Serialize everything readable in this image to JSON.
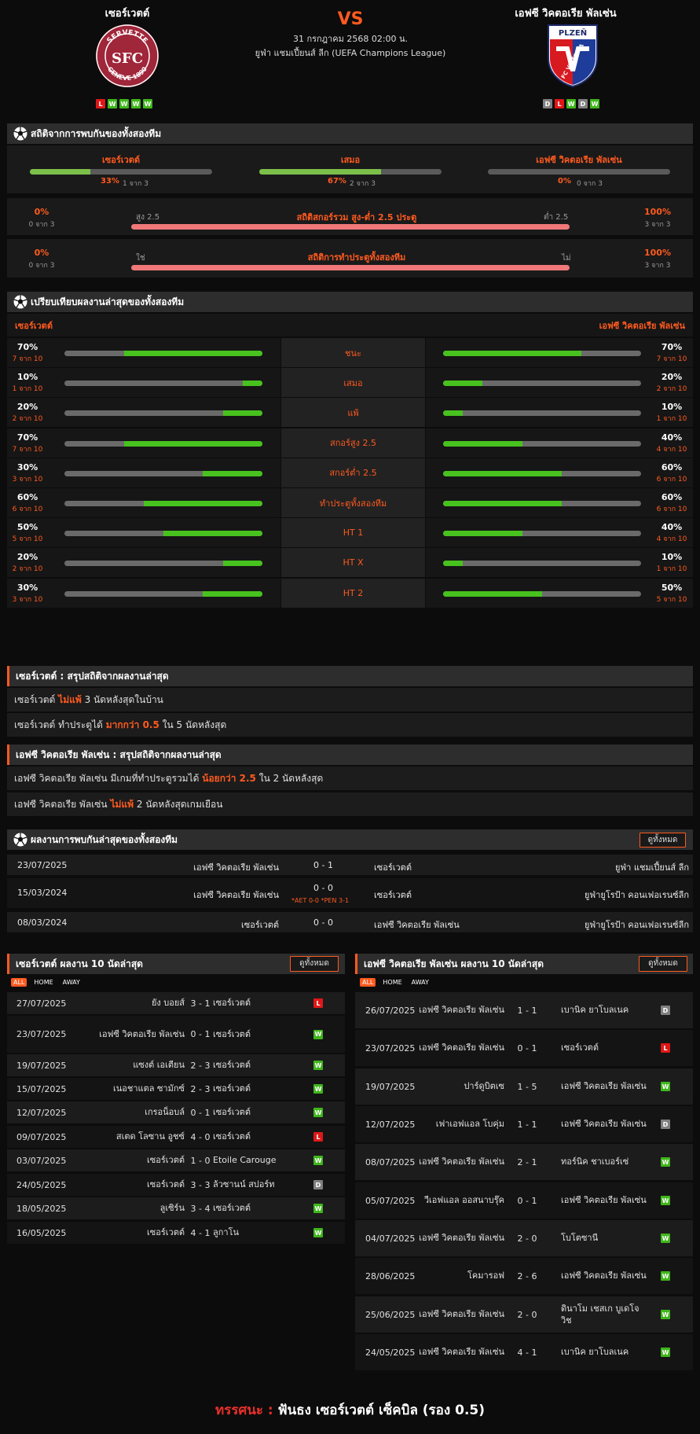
{
  "header": {
    "home": "เซอร์เวตต์",
    "away": "เอฟซี วิคตอเรีย พัลเซ่น",
    "vs": "VS",
    "date": "31 กรกฎาคม 2568 02:00 น.",
    "league": "ยูฟ่า แชมเปี้ยนส์ ลีก (UEFA Champions League)",
    "home_form": [
      "L",
      "W",
      "W",
      "W",
      "W"
    ],
    "away_form": [
      "D",
      "L",
      "W",
      "D",
      "W"
    ],
    "home_logo_text": {
      "top": "SERVETTE",
      "bottom": "GENEVE 1890",
      "mark": "SFC"
    },
    "away_logo_text": {
      "top": "PLZEŇ",
      "mid": "FC VIKTORIA"
    }
  },
  "h2h_stats": {
    "title": "สถิติจากการพบกันของทั้งสองทีม",
    "home": {
      "label": "เซอร์เวตต์",
      "pct": "33%",
      "sub": "1 จาก 3",
      "fill": 0.33
    },
    "draw": {
      "label": "เสมอ",
      "pct": "67%",
      "sub": "2 จาก 3",
      "fill": 0.67
    },
    "away": {
      "label": "เอฟซี วิคตอเรีย พัลเซ่น",
      "pct": "0%",
      "sub": "0 จาก 3",
      "fill": 0
    },
    "ou": {
      "lpct": "0%",
      "lsub": "0 จาก 3",
      "left": "สูง 2.5",
      "title": "สถิติสกอร์รวม สูง-ต่ำ 2.5 ประตู",
      "right": "ต่ำ 2.5",
      "rpct": "100%",
      "rsub": "3 จาก 3"
    },
    "btts": {
      "lpct": "0%",
      "lsub": "0 จาก 3",
      "left": "ใช่",
      "title": "สถิติการทำประตูทั้งสองทีม",
      "right": "ไม่",
      "rpct": "100%",
      "rsub": "3 จาก 3"
    }
  },
  "compare": {
    "title": "เปรียบเทียบผลงานล่าสุดของทั้งสองทีม",
    "home": "เซอร์เวตต์",
    "away": "เอฟซี วิคตอเรีย พัลเซ่น",
    "rows": [
      {
        "label": "ชนะ",
        "hp": "70%",
        "hs": "7 จาก 10",
        "hv": 0.7,
        "ap": "70%",
        "as": "7 จาก 10",
        "av": 0.7
      },
      {
        "label": "เสมอ",
        "hp": "10%",
        "hs": "1 จาก 10",
        "hv": 0.1,
        "ap": "20%",
        "as": "2 จาก 10",
        "av": 0.2
      },
      {
        "label": "แพ้",
        "hp": "20%",
        "hs": "2 จาก 10",
        "hv": 0.2,
        "ap": "10%",
        "as": "1 จาก 10",
        "av": 0.1
      },
      {
        "label": "สกอร์สูง 2.5",
        "hp": "70%",
        "hs": "7 จาก 10",
        "hv": 0.7,
        "ap": "40%",
        "as": "4 จาก 10",
        "av": 0.4
      },
      {
        "label": "สกอร์ต่ำ 2.5",
        "hp": "30%",
        "hs": "3 จาก 10",
        "hv": 0.3,
        "ap": "60%",
        "as": "6 จาก 10",
        "av": 0.6
      },
      {
        "label": "ทำประตูทั้งสองทีม",
        "hp": "60%",
        "hs": "6 จาก 10",
        "hv": 0.6,
        "ap": "60%",
        "as": "6 จาก 10",
        "av": 0.6
      },
      {
        "label": "HT 1",
        "hp": "50%",
        "hs": "5 จาก 10",
        "hv": 0.5,
        "ap": "40%",
        "as": "4 จาก 10",
        "av": 0.4
      },
      {
        "label": "HT X",
        "hp": "20%",
        "hs": "2 จาก 10",
        "hv": 0.2,
        "ap": "10%",
        "as": "1 จาก 10",
        "av": 0.1
      },
      {
        "label": "HT 2",
        "hp": "30%",
        "hs": "3 จาก 10",
        "hv": 0.3,
        "ap": "50%",
        "as": "5 จาก 10",
        "av": 0.5
      }
    ]
  },
  "summary_home": {
    "title": "เซอร์เวตต์ : สรุปสถิติจากผลงานล่าสุด",
    "r1": {
      "a": "เซอร์เวตต์",
      "b": "ไม่แพ้",
      "c": "3  นัดหลังสุดในบ้าน"
    },
    "r2": {
      "a": "เซอร์เวตต์  ทำประตูได้",
      "b": "มากกว่า  0.5",
      "c": "ใน 5 นัดหลังสุด"
    }
  },
  "summary_away": {
    "title": "เอฟซี วิคตอเรีย พัลเซ่น : สรุปสถิติจากผลงานล่าสุด",
    "r1": {
      "a": "เอฟซี วิคตอเรีย พัลเซ่น  มีเกมที่ทำประตูรวมได้",
      "b": "น้อยกว่า  2.5",
      "c": "ใน 2 นัดหลังสุด"
    },
    "r2": {
      "a": "เอฟซี วิคตอเรีย พัลเซ่น",
      "b": "ไม่แพ้",
      "c": "2  นัดหลังสุดเกมเยือน"
    }
  },
  "h2h": {
    "title": "ผลงานการพบกันล่าสุดของทั้งสองทีม",
    "see_all": "ดูทั้งหมด",
    "rows": [
      {
        "date": "23/07/2025",
        "home": "เอฟซี วิคตอเรีย พัลเซ่น",
        "score": "0 - 1",
        "away": "เซอร์เวตต์",
        "league": "ยูฟ่า แชมเปี้ยนส์ ลีก",
        "note": ""
      },
      {
        "date": "15/03/2024",
        "home": "เอฟซี วิคตอเรีย พัลเซ่น",
        "score": "0 - 0",
        "away": "เซอร์เวตต์",
        "league": "ยูฟ่ายูโรป้า คอนเฟอเรนซ์ลีก",
        "note": "*AET 0-0 *PEN 3-1"
      },
      {
        "date": "08/03/2024",
        "home": "เซอร์เวตต์",
        "score": "0 - 0",
        "away": "เอฟซี วิคตอเรีย พัลเซ่น",
        "league": "ยูฟ่ายูโรป้า คอนเฟอเรนซ์ลีก",
        "note": ""
      }
    ]
  },
  "recent_home": {
    "title": "เซอร์เวตต์ ผลงาน 10 นัดล่าสุด",
    "see_all": "ดูทั้งหมด",
    "tabs": [
      "ALL",
      "HOME",
      "AWAY"
    ],
    "rows": [
      {
        "date": "27/07/2025",
        "home": "ยัง บอยส์",
        "score": "3 - 1",
        "away": "เซอร์เวตต์",
        "r": "L"
      },
      {
        "date": "23/07/2025",
        "home": "เอฟซี วิคตอเรีย พัลเซ่น",
        "score": "0 - 1",
        "away": "เซอร์เวตต์",
        "r": "W"
      },
      {
        "date": "19/07/2025",
        "home": "แซงต์ เอเตียน",
        "score": "2 - 3",
        "away": "เซอร์เวตต์",
        "r": "W"
      },
      {
        "date": "15/07/2025",
        "home": "เนอชาแตล ซามักซ์",
        "score": "2 - 3",
        "away": "เซอร์เวตต์",
        "r": "W"
      },
      {
        "date": "12/07/2025",
        "home": "เกรอน็อบล์",
        "score": "0 - 1",
        "away": "เซอร์เวตต์",
        "r": "W"
      },
      {
        "date": "09/07/2025",
        "home": "สเตด โลซาน อูชซ์",
        "score": "4 - 0",
        "away": "เซอร์เวตต์",
        "r": "L"
      },
      {
        "date": "03/07/2025",
        "home": "เซอร์เวตต์",
        "score": "1 - 0",
        "away": "Etoile Carouge",
        "r": "W"
      },
      {
        "date": "24/05/2025",
        "home": "เซอร์เวตต์",
        "score": "3 - 3",
        "away": "ล้วซานน์ สปอร์ท",
        "r": "D"
      },
      {
        "date": "18/05/2025",
        "home": "ลูเซิร์น",
        "score": "3 - 4",
        "away": "เซอร์เวตต์",
        "r": "W"
      },
      {
        "date": "16/05/2025",
        "home": "เซอร์เวตต์",
        "score": "4 - 1",
        "away": "ลูกาโน",
        "r": "W"
      }
    ]
  },
  "recent_away": {
    "title": "เอฟซี วิคตอเรีย พัลเซ่น ผลงาน 10 นัดล่าสุด",
    "see_all": "ดูทั้งหมด",
    "tabs": [
      "ALL",
      "HOME",
      "AWAY"
    ],
    "rows": [
      {
        "date": "26/07/2025",
        "home": "เอฟซี วิคตอเรีย พัลเซ่น",
        "score": "1 - 1",
        "away": "เบานิค ยาโบลเนค",
        "r": "D"
      },
      {
        "date": "23/07/2025",
        "home": "เอฟซี วิคตอเรีย พัลเซ่น",
        "score": "0 - 1",
        "away": "เซอร์เวตต์",
        "r": "L"
      },
      {
        "date": "19/07/2025",
        "home": "ปาร์ดูบิตเซ",
        "score": "1 - 5",
        "away": "เอฟซี วิคตอเรีย พัลเซ่น",
        "r": "W"
      },
      {
        "date": "12/07/2025",
        "home": "เฟาเอฟแอล โบคุ่ม",
        "score": "1 - 1",
        "away": "เอฟซี วิคตอเรีย พัลเซ่น",
        "r": "D"
      },
      {
        "date": "08/07/2025",
        "home": "เอฟซี วิคตอเรีย พัลเซ่น",
        "score": "2 - 1",
        "away": "ทอร์นิค ชาเบอร์เซ่",
        "r": "W"
      },
      {
        "date": "05/07/2025",
        "home": "วีเอฟแอล ออสนาบรุ๊ค",
        "score": "0 - 1",
        "away": "เอฟซี วิคตอเรีย พัลเซ่น",
        "r": "W"
      },
      {
        "date": "04/07/2025",
        "home": "เอฟซี วิคตอเรีย พัลเซ่น",
        "score": "2 - 0",
        "away": "โบโตซานี",
        "r": "W"
      },
      {
        "date": "28/06/2025",
        "home": "โคมารอฟ",
        "score": "2 - 6",
        "away": "เอฟซี วิคตอเรีย พัลเซ่น",
        "r": "W"
      },
      {
        "date": "25/06/2025",
        "home": "เอฟซี วิคตอเรีย พัลเซ่น",
        "score": "2 - 0",
        "away": "ดินาโม เชสเก บูเดโจวิช",
        "r": "W"
      },
      {
        "date": "24/05/2025",
        "home": "เอฟซี วิคตอเรีย พัลเซ่น",
        "score": "4 - 1",
        "away": "เบานิค ยาโบลเนค",
        "r": "W"
      }
    ]
  },
  "verdict": {
    "label": "ทรรศนะ :",
    "text": "ฟันธง เซอร์เวตต์ เซ็คบิล (รอง 0.5)"
  },
  "colors": {
    "accent": "#ff5a1f",
    "win": "#3fb61b",
    "loss": "#e01717",
    "draw": "#808080",
    "bar_green": "#47c21e",
    "bar_red": "#f07878"
  }
}
